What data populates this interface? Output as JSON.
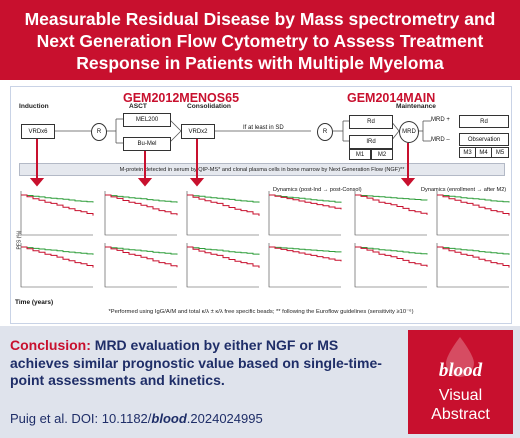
{
  "title": "Measurable Residual Disease by Mass spectrometry and\nNext Generation Flow Cytometry to Assess Treatment\nResponse in Patients with Multiple Myeloma",
  "trials": {
    "left": "GEM2012MENOS65",
    "right": "GEM2014MAIN"
  },
  "phases": {
    "induction": "Induction",
    "asct": "ASCT",
    "consolidation": "Consolidation",
    "maintenance": "Maintenance"
  },
  "boxes": {
    "vrd6": "VRDx6",
    "r": "R",
    "mel200": "MEL200",
    "bumel": "Bu-Mel",
    "vrd2": "VRDx2",
    "sd": "If at least in SD",
    "r2": "R",
    "rd": "Rd",
    "ird": "IRd",
    "m1": "M1",
    "m2": "M2",
    "mrd": "MRD",
    "mrdplus": "MRD +",
    "mrdminus": "MRD –",
    "rd2": "Rd",
    "observation": "Observation",
    "m3": "M3",
    "m4": "M4",
    "m5": "M5"
  },
  "mprotein": "M-protein detected in serum by QIP-MS* and clonal plasma cells in bone marrow by Next Generation Flow (NGF)**",
  "dynamics": {
    "left": "Dynamics (post-Ind → post-Consol)",
    "right": "Dynamics (enrollment → after M2)"
  },
  "axis": {
    "ylabel": "PFS (%)",
    "xlabel": "Time (years)"
  },
  "footnote": "*Performed using IgG/A/M and total κ/λ ± κ/λ free specific beads; ** following the Euroflow guidelines (sensitivity ≥10⁻⁶)",
  "conclusion": {
    "lead": "Conclusion:",
    "text": "MRD evaluation by either NGF or MS achieves similar prognostic value based on single-time-point assessments and kinetics."
  },
  "citation": {
    "prefix": "Puig et al. DOI: 10.1182/",
    "journal": "blood",
    "suffix": ".2024024995"
  },
  "badge": {
    "word": "blood",
    "sub": "Visual\nAbstract"
  },
  "colors": {
    "red": "#c8102e",
    "navy": "#1f2e68",
    "green": "#2e9d3a",
    "grey": "#9aa0a6",
    "panel_bg": "#dfe3ec"
  }
}
